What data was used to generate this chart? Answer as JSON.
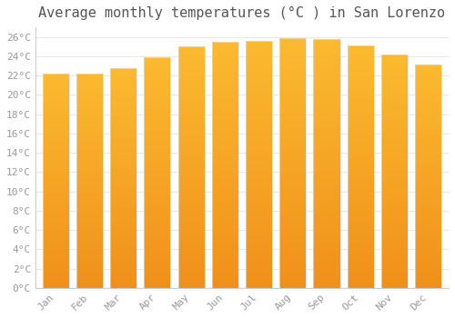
{
  "title": "Average monthly temperatures (°C ) in San Lorenzo",
  "months": [
    "Jan",
    "Feb",
    "Mar",
    "Apr",
    "May",
    "Jun",
    "Jul",
    "Aug",
    "Sep",
    "Oct",
    "Nov",
    "Dec"
  ],
  "values": [
    22.2,
    22.2,
    22.8,
    23.9,
    25.0,
    25.5,
    25.6,
    25.9,
    25.8,
    25.1,
    24.2,
    23.1
  ],
  "bar_color_top": "#FBBA30",
  "bar_color_bottom": "#F0901A",
  "bar_edge_color": "#DDDDDD",
  "background_color": "#FFFFFF",
  "plot_bg_color": "#FFFFFF",
  "grid_color": "#E8E8E8",
  "tick_label_color": "#999999",
  "title_color": "#555555",
  "ylim": [
    0,
    27
  ],
  "ytick_step": 2,
  "title_fontsize": 11,
  "tick_fontsize": 8
}
